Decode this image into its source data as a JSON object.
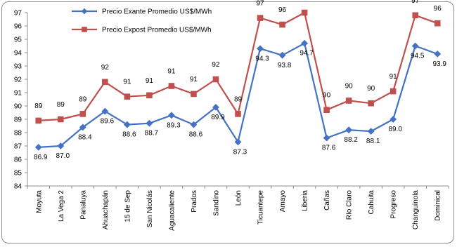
{
  "chart_data": {
    "type": "line",
    "title": "",
    "xlabel": "",
    "ylabel": "",
    "ylim": [
      84,
      97
    ],
    "y_ticks": [
      84,
      85,
      86,
      87,
      88,
      89,
      90,
      91,
      92,
      93,
      94,
      95,
      96,
      97
    ],
    "grid": false,
    "legend_placement": "top-left",
    "categories": [
      "Moyuta",
      "La Vega 2",
      "Panaluya",
      "Ahuachapán",
      "15 de Sep",
      "San Nicolás",
      "Aguacaliente",
      "Prados",
      "Sandino",
      "León",
      "Ticuantepe",
      "Amayo",
      "Liberia",
      "Cañas",
      "Río Claro",
      "Cahuita",
      "Progreso",
      "Changuinola",
      "Dominical"
    ],
    "series": [
      {
        "name": "Precio Exante Promedio US$/MWh",
        "color": "#4472C4",
        "marker": "diamond",
        "values": [
          86.9,
          87.0,
          88.4,
          89.6,
          88.6,
          88.7,
          89.3,
          88.6,
          89.9,
          87.3,
          94.3,
          93.8,
          94.7,
          87.6,
          88.2,
          88.1,
          89.0,
          94.5,
          93.9
        ],
        "labels": [
          "86.9",
          "87.0",
          "88.4",
          "89.6",
          "88.6",
          "88.7",
          "89.3",
          "88.6",
          "89.9",
          "87.3",
          "94.3",
          "93.8",
          "94.7",
          "87.6",
          "88.2",
          "88.1",
          "89.0",
          "94.5",
          "93.9"
        ]
      },
      {
        "name": "Precio Expost Promedio US$/MWh",
        "color": "#C0504D",
        "marker": "square",
        "values": [
          88.9,
          89.0,
          89.4,
          91.8,
          90.7,
          90.8,
          91.5,
          90.9,
          92.0,
          89.4,
          96.6,
          96.1,
          97.0,
          89.7,
          90.4,
          90.2,
          91.1,
          96.8,
          96.2
        ],
        "labels": [
          "89",
          "89",
          "89",
          "92",
          "91",
          "91",
          "91",
          "91",
          "92",
          "89",
          "97",
          "96",
          "97",
          "90",
          "90",
          "90",
          "91",
          "97",
          "96"
        ]
      }
    ]
  }
}
